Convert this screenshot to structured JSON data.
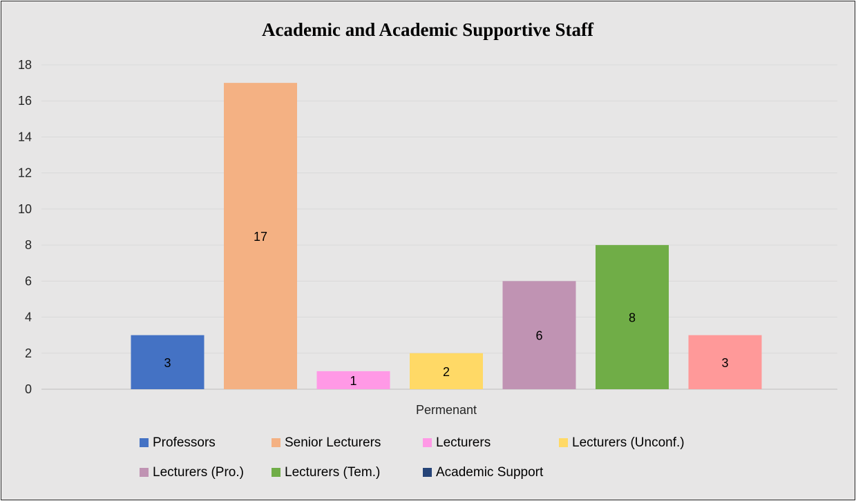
{
  "chart_data": {
    "type": "bar",
    "title": "Academic and Academic Supportive Staff",
    "categories": [
      "Permenant"
    ],
    "xlabel": "",
    "ylabel": "",
    "ylim": [
      0,
      18
    ],
    "yticks": [
      0,
      2,
      4,
      6,
      8,
      10,
      12,
      14,
      16,
      18
    ],
    "grid": true,
    "legend_position": "bottom",
    "series": [
      {
        "name": "Professors",
        "values": [
          3
        ],
        "color": "#4472c4"
      },
      {
        "name": "Senior Lecturers",
        "values": [
          17
        ],
        "color": "#f4b183"
      },
      {
        "name": "Lecturers",
        "values": [
          1
        ],
        "color": "#ff99e6"
      },
      {
        "name": "Lecturers (Unconf.)",
        "values": [
          2
        ],
        "color": "#ffd966"
      },
      {
        "name": "Lecturers (Pro.)",
        "values": [
          6
        ],
        "color": "#c093b3"
      },
      {
        "name": "Lecturers (Tem.)",
        "values": [
          8
        ],
        "color": "#70ad47"
      },
      {
        "name": "Academic Support",
        "values": [
          3
        ],
        "color": "#ff9999",
        "legend_color": "#264478"
      }
    ]
  }
}
